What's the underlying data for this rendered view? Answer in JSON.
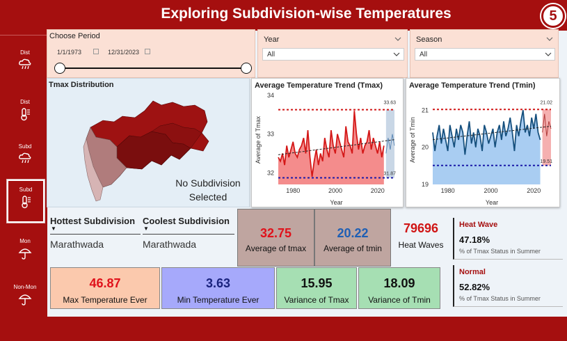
{
  "title": "Exploring Subdivision-wise Temperatures",
  "page_number": "5",
  "sidebar": {
    "items": [
      {
        "label": "Dist",
        "icon": "rain-cloud-icon"
      },
      {
        "label": "Dist",
        "icon": "thermometer-icon"
      },
      {
        "label": "Subd",
        "icon": "rain-cloud-icon"
      },
      {
        "label": "Subd",
        "icon": "thermometer-icon"
      },
      {
        "label": "Mon",
        "icon": "umbrella-icon"
      },
      {
        "label": "Non-Mon",
        "icon": "umbrella-icon"
      }
    ]
  },
  "period": {
    "label": "Choose Period",
    "start": "1/1/1973",
    "end": "12/31/2023"
  },
  "year_filter": {
    "label": "Year",
    "value": "All"
  },
  "season_filter": {
    "label": "Season",
    "value": "All"
  },
  "map": {
    "title": "Tmax Distribution",
    "note_line1": "No Subdivision",
    "note_line2": "Selected"
  },
  "tmax_chart": {
    "title": "Average Temperature Trend (Tmax)",
    "ylabel": "Average of Tmax",
    "xlabel": "Year",
    "upper": "33.63",
    "lower": "31.87"
  },
  "tmin_chart": {
    "title": "Average Temperature Trend (Tmin)",
    "ylabel": "Average of Tmin",
    "xlabel": "Year",
    "upper": "21.02",
    "lower": "19.51"
  },
  "extremes": {
    "hottest_label": "Hottest Subdivision",
    "hottest_value": "Marathwada",
    "coolest_label": "Coolest Subdivision",
    "coolest_value": "Marathwada"
  },
  "kpis": {
    "avg_tmax": {
      "value": "32.75",
      "label": "Average of tmax"
    },
    "avg_tmin": {
      "value": "20.22",
      "label": "Average of tmin"
    },
    "heat_waves": {
      "value": "79696",
      "label": "Heat Waves"
    },
    "max_temp": {
      "value": "46.87",
      "label": "Max Temperature Ever"
    },
    "min_temp": {
      "value": "3.63",
      "label": "Min Temperature Ever"
    },
    "var_tmax": {
      "value": "15.95",
      "label": "Variance of Tmax"
    },
    "var_tmin": {
      "value": "18.09",
      "label": "Variance of Tmin"
    }
  },
  "status": {
    "heat_wave": {
      "label": "Heat Wave",
      "value": "47.18%",
      "caption": "% of Tmax Status in Summer"
    },
    "normal": {
      "label": "Normal",
      "value": "52.82%",
      "caption": "% of Tmax Status in Summer"
    }
  },
  "colors": {
    "brand": "#a50f0f",
    "tmax_value": "#e0121b",
    "tmin_value": "#1f5fb4"
  },
  "chart_data": [
    {
      "type": "line",
      "title": "Average Temperature Trend (Tmax)",
      "xlabel": "Year",
      "ylabel": "Average of Tmax",
      "xlim": [
        1973,
        2028
      ],
      "ylim": [
        31.7,
        34.0
      ],
      "x": [
        1973,
        1974,
        1975,
        1976,
        1977,
        1978,
        1979,
        1980,
        1981,
        1982,
        1983,
        1984,
        1985,
        1986,
        1987,
        1988,
        1989,
        1990,
        1991,
        1992,
        1993,
        1994,
        1995,
        1996,
        1997,
        1998,
        1999,
        2000,
        2001,
        2002,
        2003,
        2004,
        2005,
        2006,
        2007,
        2008,
        2009,
        2010,
        2011,
        2012,
        2013,
        2014,
        2015,
        2016,
        2017,
        2018,
        2019,
        2020,
        2021,
        2022,
        2023
      ],
      "series": [
        {
          "values": [
            32.4,
            32.3,
            32.5,
            32.2,
            32.7,
            32.4,
            32.6,
            32.8,
            32.5,
            32.4,
            32.6,
            32.7,
            32.9,
            32.5,
            33.1,
            32.4,
            31.9,
            32.3,
            32.6,
            32.2,
            32.5,
            32.3,
            32.9,
            32.6,
            32.4,
            33.1,
            32.7,
            32.5,
            33.0,
            32.8,
            32.6,
            32.4,
            33.2,
            32.8,
            32.7,
            32.5,
            33.6,
            33.0,
            32.6,
            32.9,
            32.5,
            32.7,
            32.8,
            33.1,
            32.6,
            32.9,
            32.7,
            32.5,
            32.8,
            32.4,
            32.7
          ]
        }
      ],
      "forecast": {
        "x_start": 2024,
        "x_end": 2028,
        "values": [
          32.5,
          32.9,
          32.6,
          33.0,
          32.7
        ],
        "upper": 33.63,
        "lower": 31.87
      },
      "trend": "dashed",
      "reference_lines": [
        33.63,
        31.87
      ]
    },
    {
      "type": "line",
      "title": "Average Temperature Trend (Tmin)",
      "xlabel": "Year",
      "ylabel": "Average of Tmin",
      "xlim": [
        1973,
        2028
      ],
      "ylim": [
        19.0,
        21.4
      ],
      "x": [
        1973,
        1974,
        1975,
        1976,
        1977,
        1978,
        1979,
        1980,
        1981,
        1982,
        1983,
        1984,
        1985,
        1986,
        1987,
        1988,
        1989,
        1990,
        1991,
        1992,
        1993,
        1994,
        1995,
        1996,
        1997,
        1998,
        1999,
        2000,
        2001,
        2002,
        2003,
        2004,
        2005,
        2006,
        2007,
        2008,
        2009,
        2010,
        2011,
        2012,
        2013,
        2014,
        2015,
        2016,
        2017,
        2018,
        2019,
        2020,
        2021,
        2022,
        2023
      ],
      "series": [
        {
          "values": [
            20.4,
            19.9,
            20.3,
            20.6,
            20.1,
            20.5,
            20.2,
            19.9,
            20.6,
            20.3,
            20.0,
            20.5,
            20.2,
            20.6,
            20.4,
            19.8,
            20.3,
            20.7,
            20.1,
            20.4,
            20.0,
            20.5,
            20.3,
            19.9,
            20.6,
            20.4,
            20.1,
            20.3,
            20.5,
            20.0,
            20.4,
            20.6,
            20.2,
            20.7,
            20.3,
            20.5,
            20.8,
            20.4,
            19.9,
            20.6,
            20.3,
            20.7,
            21.0,
            20.4,
            20.6,
            20.3,
            20.8,
            20.5,
            20.9,
            20.4,
            20.2
          ]
        }
      ],
      "forecast": {
        "x_start": 2024,
        "x_end": 2028,
        "values": [
          20.4,
          20.9,
          20.3,
          20.7,
          20.5
        ],
        "upper": 21.02,
        "lower": 19.51
      },
      "trend": "dashed",
      "reference_lines": [
        21.02,
        19.51
      ]
    }
  ]
}
